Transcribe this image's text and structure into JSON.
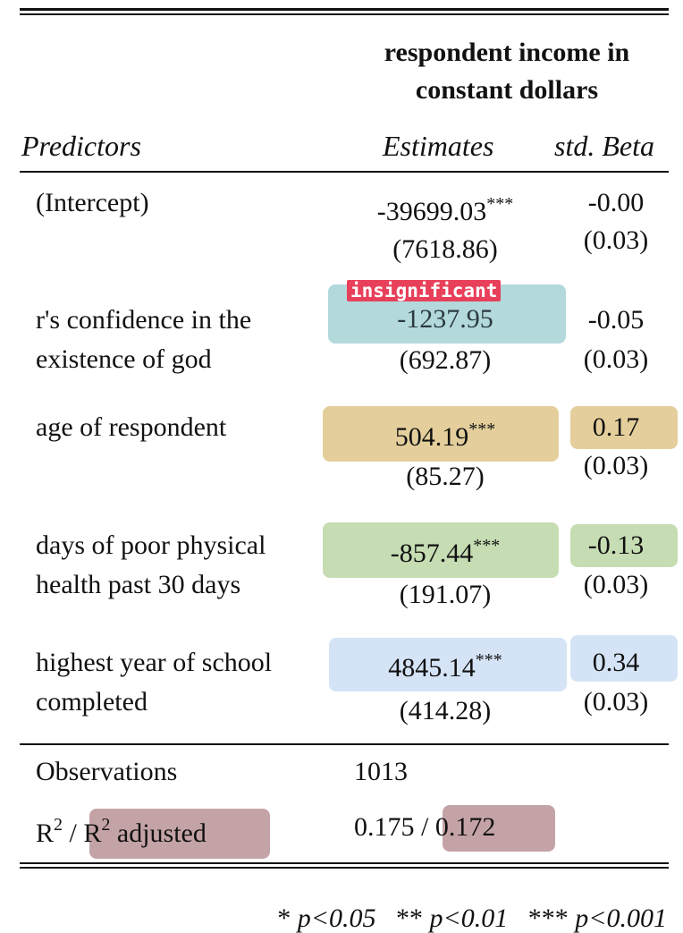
{
  "header": {
    "dependent_var_line1": "respondent income in",
    "dependent_var_line2": "constant dollars",
    "col_predictors": "Predictors",
    "col_estimates": "Estimates",
    "col_std_beta": "std. Beta"
  },
  "rows": [
    {
      "label": [
        "(Intercept)"
      ],
      "estimate": "-39699.03",
      "stars": "***",
      "se": "(7618.86)",
      "beta": "-0.00",
      "beta_se": "(0.03)"
    },
    {
      "label": [
        "r's confidence in the",
        "existence of god"
      ],
      "estimate": "-1237.95",
      "stars": "",
      "se": "(692.87)",
      "beta": "-0.05",
      "beta_se": "(0.03)",
      "tag": "insignificant"
    },
    {
      "label": [
        "age of respondent"
      ],
      "estimate": "504.19",
      "stars": "***",
      "se": "(85.27)",
      "beta": "0.17",
      "beta_se": "(0.03)"
    },
    {
      "label": [
        "days of poor physical",
        "health past 30 days"
      ],
      "estimate": "-857.44",
      "stars": "***",
      "se": "(191.07)",
      "beta": "-0.13",
      "beta_se": "(0.03)"
    },
    {
      "label": [
        "highest year of school",
        "completed"
      ],
      "estimate": "4845.14",
      "stars": "***",
      "se": "(414.28)",
      "beta": "0.34",
      "beta_se": "(0.03)"
    }
  ],
  "stats": {
    "observations_label": "Observations",
    "observations_value": "1013",
    "r2_base": "R",
    "r2_sup": "2",
    "r2_sep": " / ",
    "r2adj_base": "R",
    "r2adj_sup": "2",
    "r2adj_suffix": " adjusted",
    "r2_value": "0.175",
    "r2_value_sep": " / ",
    "r2adj_value": "0.172"
  },
  "footnote": {
    "p05_stars": "*",
    "p05_text": "p<0.05",
    "p01_stars": "**",
    "p01_text": "p<0.01",
    "p001_stars": "***",
    "p001_text": "p<0.001"
  },
  "colors": {
    "teal_highlight": "#b3d9dc",
    "tan_highlight": "#e4cf9c",
    "green_highlight": "#c6dcb3",
    "blue_highlight": "#d4e3f6",
    "mauve_highlight": "#c4a3a6",
    "tag_red": "#e8405a"
  }
}
